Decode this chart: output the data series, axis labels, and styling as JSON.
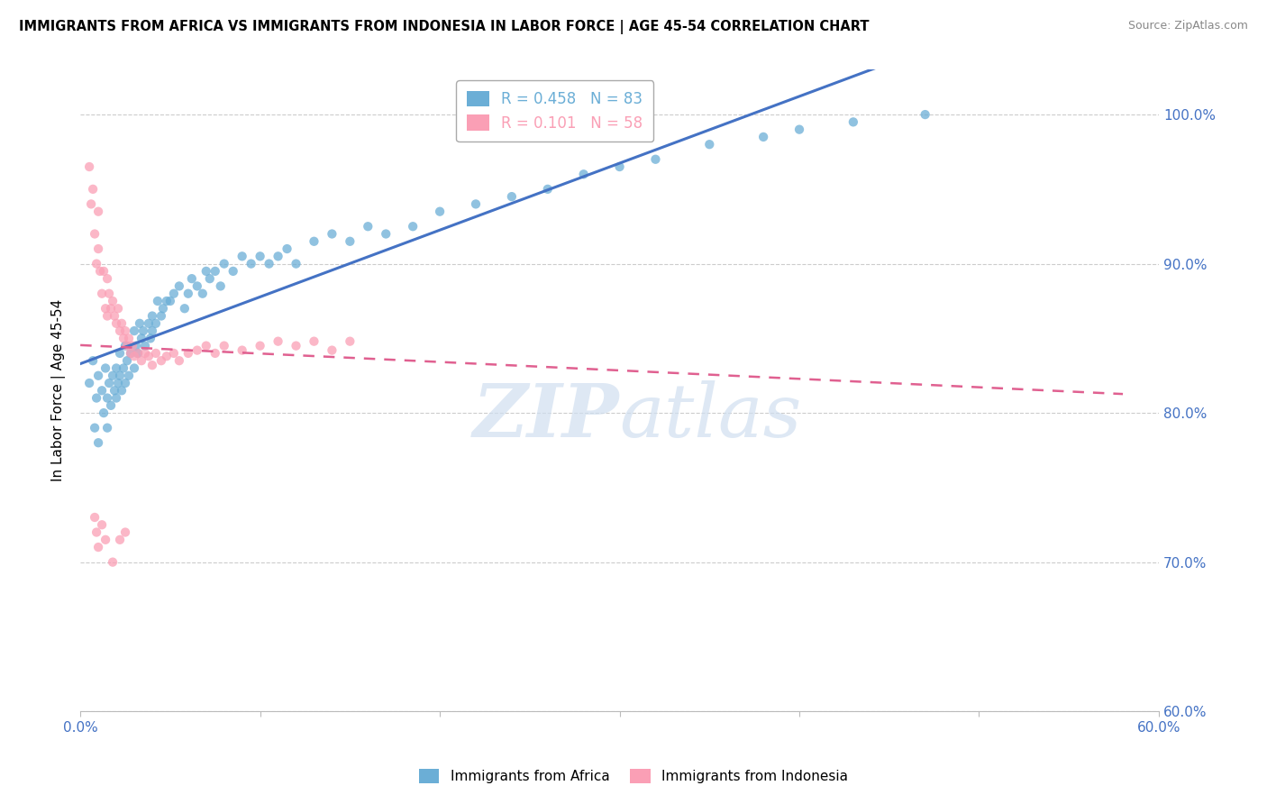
{
  "title": "IMMIGRANTS FROM AFRICA VS IMMIGRANTS FROM INDONESIA IN LABOR FORCE | AGE 45-54 CORRELATION CHART",
  "source": "Source: ZipAtlas.com",
  "ylabel": "In Labor Force | Age 45-54",
  "xlim": [
    0.0,
    0.6
  ],
  "ylim": [
    0.6,
    1.03
  ],
  "ytick_positions": [
    0.6,
    0.7,
    0.8,
    0.9,
    1.0
  ],
  "ytick_labels": [
    "60.0%",
    "70.0%",
    "80.0%",
    "90.0%",
    "100.0%"
  ],
  "africa_color": "#6baed6",
  "indonesia_color": "#fa9fb5",
  "africa_trendline_color": "#4472c4",
  "indonesia_trendline_color": "#e06090",
  "africa_R": 0.458,
  "africa_N": 83,
  "indonesia_R": 0.101,
  "indonesia_N": 58,
  "legend_label_africa": "Immigrants from Africa",
  "legend_label_indonesia": "Immigrants from Indonesia",
  "watermark_zip": "ZIP",
  "watermark_atlas": "atlas",
  "africa_x": [
    0.005,
    0.007,
    0.008,
    0.009,
    0.01,
    0.01,
    0.012,
    0.013,
    0.014,
    0.015,
    0.015,
    0.016,
    0.017,
    0.018,
    0.019,
    0.02,
    0.02,
    0.021,
    0.022,
    0.022,
    0.023,
    0.024,
    0.025,
    0.025,
    0.026,
    0.027,
    0.028,
    0.03,
    0.03,
    0.031,
    0.032,
    0.033,
    0.034,
    0.035,
    0.036,
    0.038,
    0.039,
    0.04,
    0.04,
    0.042,
    0.043,
    0.045,
    0.046,
    0.048,
    0.05,
    0.052,
    0.055,
    0.058,
    0.06,
    0.062,
    0.065,
    0.068,
    0.07,
    0.072,
    0.075,
    0.078,
    0.08,
    0.085,
    0.09,
    0.095,
    0.1,
    0.105,
    0.11,
    0.115,
    0.12,
    0.13,
    0.14,
    0.15,
    0.16,
    0.17,
    0.185,
    0.2,
    0.22,
    0.24,
    0.26,
    0.28,
    0.3,
    0.32,
    0.35,
    0.38,
    0.4,
    0.43,
    0.47
  ],
  "africa_y": [
    0.82,
    0.835,
    0.79,
    0.81,
    0.825,
    0.78,
    0.815,
    0.8,
    0.83,
    0.81,
    0.79,
    0.82,
    0.805,
    0.825,
    0.815,
    0.81,
    0.83,
    0.82,
    0.825,
    0.84,
    0.815,
    0.83,
    0.82,
    0.845,
    0.835,
    0.825,
    0.84,
    0.83,
    0.855,
    0.845,
    0.84,
    0.86,
    0.85,
    0.855,
    0.845,
    0.86,
    0.85,
    0.865,
    0.855,
    0.86,
    0.875,
    0.865,
    0.87,
    0.875,
    0.875,
    0.88,
    0.885,
    0.87,
    0.88,
    0.89,
    0.885,
    0.88,
    0.895,
    0.89,
    0.895,
    0.885,
    0.9,
    0.895,
    0.905,
    0.9,
    0.905,
    0.9,
    0.905,
    0.91,
    0.9,
    0.915,
    0.92,
    0.915,
    0.925,
    0.92,
    0.925,
    0.935,
    0.94,
    0.945,
    0.95,
    0.96,
    0.965,
    0.97,
    0.98,
    0.985,
    0.99,
    0.995,
    1.0
  ],
  "indonesia_x": [
    0.005,
    0.006,
    0.007,
    0.008,
    0.009,
    0.01,
    0.01,
    0.011,
    0.012,
    0.013,
    0.014,
    0.015,
    0.015,
    0.016,
    0.017,
    0.018,
    0.019,
    0.02,
    0.021,
    0.022,
    0.023,
    0.024,
    0.025,
    0.026,
    0.027,
    0.028,
    0.029,
    0.03,
    0.032,
    0.034,
    0.036,
    0.038,
    0.04,
    0.042,
    0.045,
    0.048,
    0.052,
    0.055,
    0.06,
    0.065,
    0.07,
    0.075,
    0.08,
    0.09,
    0.1,
    0.11,
    0.12,
    0.13,
    0.14,
    0.15,
    0.008,
    0.009,
    0.01,
    0.012,
    0.014,
    0.018,
    0.022,
    0.025
  ],
  "indonesia_y": [
    0.965,
    0.94,
    0.95,
    0.92,
    0.9,
    0.935,
    0.91,
    0.895,
    0.88,
    0.895,
    0.87,
    0.89,
    0.865,
    0.88,
    0.87,
    0.875,
    0.865,
    0.86,
    0.87,
    0.855,
    0.86,
    0.85,
    0.855,
    0.845,
    0.85,
    0.84,
    0.845,
    0.838,
    0.84,
    0.835,
    0.84,
    0.838,
    0.832,
    0.84,
    0.835,
    0.838,
    0.84,
    0.835,
    0.84,
    0.842,
    0.845,
    0.84,
    0.845,
    0.842,
    0.845,
    0.848,
    0.845,
    0.848,
    0.842,
    0.848,
    0.73,
    0.72,
    0.71,
    0.725,
    0.715,
    0.7,
    0.715,
    0.72
  ]
}
